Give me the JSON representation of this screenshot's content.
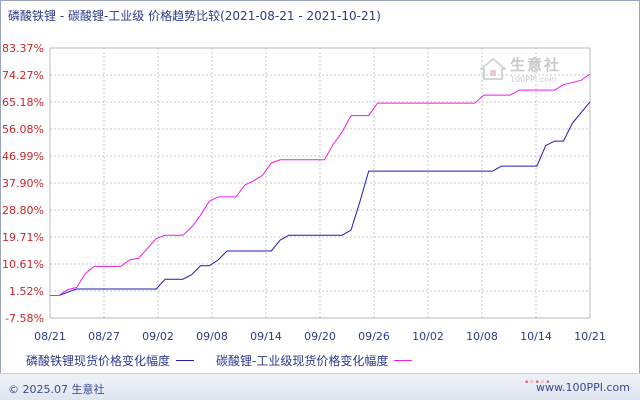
{
  "title": "磷酸铁锂 - 碳酸锂-工业级 价格趋势比较(2021-08-21 - 2021-10-21)",
  "footer": {
    "copyright": "© 2025.07 生意社",
    "site": "www.100PPI.com"
  },
  "watermark": {
    "name": "生意社",
    "url": "100PPI.com"
  },
  "colors": {
    "series1": "#1c1cb8",
    "series2": "#ee1ee6",
    "axis_label": "#c8262b",
    "text": "#2b3a8c"
  },
  "chart_data": {
    "type": "line",
    "x_tick_labels": [
      "08/21",
      "08/27",
      "09/02",
      "09/08",
      "09/14",
      "09/20",
      "09/26",
      "10/02",
      "10/08",
      "10/14",
      "10/21"
    ],
    "y_tick_labels": [
      "83.37%",
      "74.27%",
      "65.18%",
      "56.08%",
      "46.99%",
      "37.90%",
      "28.80%",
      "19.71%",
      "10.61%",
      "1.52%",
      "-7.58%"
    ],
    "ylim": [
      -7.58,
      83.37
    ],
    "x_start": "2021-08-21",
    "x_end": "2021-10-21",
    "grid": true,
    "legend_position": "bottom",
    "series": [
      {
        "name": "磷酸铁锂现货价格变化幅度",
        "color_key": "series1",
        "points": [
          [
            "2021-08-21",
            0.0
          ],
          [
            "2021-08-22",
            0.0
          ],
          [
            "2021-08-23",
            1.1
          ],
          [
            "2021-08-24",
            2.2
          ],
          [
            "2021-09-01",
            2.2
          ],
          [
            "2021-09-02",
            2.2
          ],
          [
            "2021-09-03",
            5.5
          ],
          [
            "2021-09-05",
            5.5
          ],
          [
            "2021-09-06",
            7.0
          ],
          [
            "2021-09-07",
            10.0
          ],
          [
            "2021-09-08",
            10.0
          ],
          [
            "2021-09-09",
            12.0
          ],
          [
            "2021-09-10",
            15.0
          ],
          [
            "2021-09-15",
            15.0
          ],
          [
            "2021-09-16",
            18.7
          ],
          [
            "2021-09-17",
            20.3
          ],
          [
            "2021-09-23",
            20.3
          ],
          [
            "2021-09-24",
            22.0
          ],
          [
            "2021-09-25",
            31.5
          ],
          [
            "2021-09-26",
            41.9
          ],
          [
            "2021-10-10",
            41.9
          ],
          [
            "2021-10-11",
            43.6
          ],
          [
            "2021-10-15",
            43.6
          ],
          [
            "2021-10-16",
            50.5
          ],
          [
            "2021-10-17",
            52.0
          ],
          [
            "2021-10-18",
            52.0
          ],
          [
            "2021-10-19",
            58.0
          ],
          [
            "2021-10-21",
            65.2
          ]
        ]
      },
      {
        "name": "碳酸锂-工业级现货价格变化幅度",
        "color_key": "series2",
        "points": [
          [
            "2021-08-21",
            0.0
          ],
          [
            "2021-08-22",
            0.0
          ],
          [
            "2021-08-23",
            2.0
          ],
          [
            "2021-08-24",
            2.7
          ],
          [
            "2021-08-25",
            7.4
          ],
          [
            "2021-08-26",
            9.8
          ],
          [
            "2021-08-27",
            9.8
          ],
          [
            "2021-08-29",
            9.8
          ],
          [
            "2021-08-30",
            12.0
          ],
          [
            "2021-08-31",
            12.5
          ],
          [
            "2021-09-02",
            19.2
          ],
          [
            "2021-09-03",
            20.3
          ],
          [
            "2021-09-05",
            20.3
          ],
          [
            "2021-09-06",
            23.0
          ],
          [
            "2021-09-07",
            27.0
          ],
          [
            "2021-09-08",
            31.8
          ],
          [
            "2021-09-09",
            33.2
          ],
          [
            "2021-09-11",
            33.2
          ],
          [
            "2021-09-12",
            37.2
          ],
          [
            "2021-09-13",
            38.6
          ],
          [
            "2021-09-14",
            40.5
          ],
          [
            "2021-09-15",
            44.6
          ],
          [
            "2021-09-16",
            45.7
          ],
          [
            "2021-09-21",
            45.7
          ],
          [
            "2021-09-22",
            51.0
          ],
          [
            "2021-09-23",
            55.0
          ],
          [
            "2021-09-24",
            60.6
          ],
          [
            "2021-09-26",
            60.6
          ],
          [
            "2021-09-27",
            64.8
          ],
          [
            "2021-10-08",
            64.8
          ],
          [
            "2021-10-09",
            67.5
          ],
          [
            "2021-10-12",
            67.5
          ],
          [
            "2021-10-13",
            69.2
          ],
          [
            "2021-10-17",
            69.2
          ],
          [
            "2021-10-18",
            71.0
          ],
          [
            "2021-10-20",
            72.5
          ],
          [
            "2021-10-21",
            74.6
          ]
        ]
      }
    ]
  }
}
